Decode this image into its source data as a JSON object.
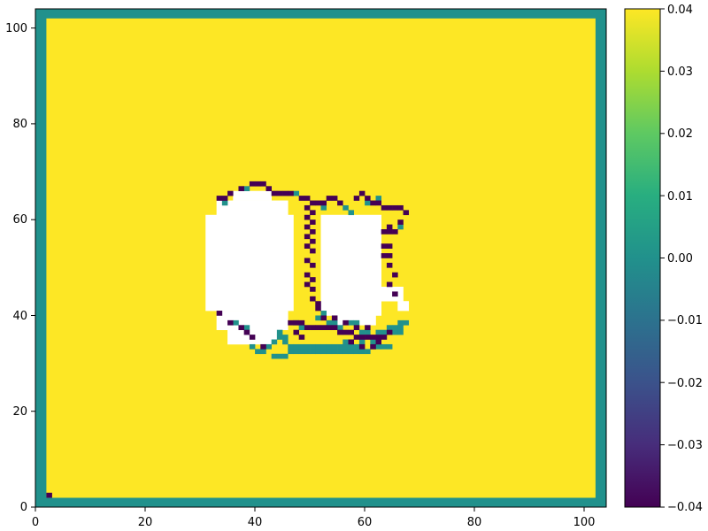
{
  "chart_data": {
    "type": "heatmap",
    "title": "",
    "xlabel": "",
    "ylabel": "",
    "xlim": [
      0,
      104
    ],
    "ylim": [
      0,
      104
    ],
    "x_ticks": [
      0,
      20,
      40,
      60,
      80,
      100
    ],
    "y_ticks": [
      0,
      20,
      40,
      60,
      80,
      100
    ],
    "x_tick_labels": [
      "0",
      "20",
      "40",
      "60",
      "80",
      "100"
    ],
    "y_tick_labels": [
      "0",
      "20",
      "40",
      "60",
      "80",
      "100"
    ],
    "colormap": "viridis",
    "color_range": [
      -0.04,
      0.04
    ],
    "colorbar_ticks": [
      0.04,
      0.03,
      0.02,
      0.01,
      0.0,
      -0.01,
      -0.02,
      -0.03,
      -0.04
    ],
    "colorbar_tick_labels": [
      "0.04",
      "0.03",
      "0.02",
      "0.01",
      "0.00",
      "−0.01",
      "−0.02",
      "−0.03",
      "−0.04"
    ],
    "colorbar_placement": "right",
    "grid": false,
    "background_value": 0.04,
    "border_value": 0.0,
    "border_width": 2,
    "missing_color": "#ffffff",
    "colors": {
      "high": "#fde725",
      "mid": "#21918c",
      "low": "#440154"
    },
    "missing_regions": [
      {
        "x": [
          31,
          47
        ],
        "y": [
          41,
          61
        ]
      },
      {
        "x": [
          33,
          46
        ],
        "y": [
          37,
          41
        ]
      },
      {
        "x": [
          35,
          44
        ],
        "y": [
          34,
          37
        ]
      },
      {
        "x": [
          33,
          46
        ],
        "y": [
          61,
          64
        ]
      },
      {
        "x": [
          36,
          43
        ],
        "y": [
          64,
          66
        ]
      },
      {
        "x": [
          52,
          63
        ],
        "y": [
          40,
          61
        ]
      },
      {
        "x": [
          55,
          62
        ],
        "y": [
          38,
          40
        ]
      },
      {
        "x": [
          63,
          67
        ],
        "y": [
          43,
          46
        ]
      },
      {
        "x": [
          66,
          68
        ],
        "y": [
          41,
          43
        ]
      }
    ],
    "low_cells": [
      [
        2,
        2
      ],
      [
        39,
        67
      ],
      [
        40,
        67
      ],
      [
        41,
        67
      ],
      [
        37,
        66
      ],
      [
        42,
        66
      ],
      [
        35,
        65
      ],
      [
        43,
        65
      ],
      [
        44,
        65
      ],
      [
        45,
        65
      ],
      [
        46,
        65
      ],
      [
        33,
        64
      ],
      [
        34,
        64
      ],
      [
        48,
        64
      ],
      [
        49,
        64
      ],
      [
        50,
        63
      ],
      [
        51,
        63
      ],
      [
        52,
        63
      ],
      [
        53,
        64
      ],
      [
        54,
        64
      ],
      [
        55,
        63
      ],
      [
        58,
        64
      ],
      [
        59,
        65
      ],
      [
        60,
        64
      ],
      [
        61,
        63
      ],
      [
        62,
        63
      ],
      [
        63,
        62
      ],
      [
        64,
        62
      ],
      [
        65,
        62
      ],
      [
        66,
        62
      ],
      [
        67,
        61
      ],
      [
        63,
        57
      ],
      [
        64,
        57
      ],
      [
        65,
        57
      ],
      [
        64,
        58
      ],
      [
        66,
        59
      ],
      [
        49,
        62
      ],
      [
        50,
        61
      ],
      [
        49,
        60
      ],
      [
        50,
        59
      ],
      [
        49,
        58
      ],
      [
        50,
        57
      ],
      [
        49,
        56
      ],
      [
        50,
        55
      ],
      [
        49,
        54
      ],
      [
        50,
        53
      ],
      [
        49,
        51
      ],
      [
        50,
        50
      ],
      [
        49,
        48
      ],
      [
        50,
        47
      ],
      [
        49,
        46
      ],
      [
        50,
        45
      ],
      [
        50,
        43
      ],
      [
        51,
        42
      ],
      [
        51,
        41
      ],
      [
        64,
        54
      ],
      [
        64,
        52
      ],
      [
        64,
        50
      ],
      [
        65,
        48
      ],
      [
        64,
        46
      ],
      [
        65,
        44
      ],
      [
        63,
        54
      ],
      [
        63,
        52
      ],
      [
        46,
        38
      ],
      [
        47,
        38
      ],
      [
        48,
        38
      ],
      [
        49,
        37
      ],
      [
        50,
        37
      ],
      [
        51,
        37
      ],
      [
        52,
        37
      ],
      [
        53,
        37
      ],
      [
        54,
        37
      ],
      [
        55,
        36
      ],
      [
        56,
        36
      ],
      [
        57,
        36
      ],
      [
        58,
        35
      ],
      [
        59,
        35
      ],
      [
        60,
        35
      ],
      [
        61,
        35
      ],
      [
        62,
        35
      ],
      [
        63,
        35
      ],
      [
        52,
        39
      ],
      [
        54,
        39
      ],
      [
        56,
        38
      ],
      [
        58,
        37
      ],
      [
        60,
        37
      ],
      [
        47,
        36
      ],
      [
        48,
        35
      ],
      [
        57,
        34
      ],
      [
        59,
        33
      ],
      [
        61,
        33
      ],
      [
        62,
        34
      ],
      [
        64,
        36
      ],
      [
        33,
        40
      ],
      [
        35,
        38
      ],
      [
        37,
        37
      ],
      [
        38,
        36
      ],
      [
        39,
        35
      ],
      [
        41,
        33
      ]
    ],
    "mid_cells": [
      [
        38,
        66
      ],
      [
        34,
        63
      ],
      [
        47,
        65
      ],
      [
        52,
        62
      ],
      [
        56,
        62
      ],
      [
        57,
        61
      ],
      [
        60,
        63
      ],
      [
        62,
        64
      ],
      [
        66,
        58
      ],
      [
        43,
        31
      ],
      [
        44,
        31
      ],
      [
        45,
        31
      ],
      [
        46,
        32
      ],
      [
        47,
        32
      ],
      [
        48,
        32
      ],
      [
        49,
        32
      ],
      [
        50,
        32
      ],
      [
        51,
        32
      ],
      [
        52,
        32
      ],
      [
        53,
        32
      ],
      [
        54,
        32
      ],
      [
        55,
        32
      ],
      [
        56,
        32
      ],
      [
        57,
        32
      ],
      [
        58,
        32
      ],
      [
        59,
        32
      ],
      [
        60,
        32
      ],
      [
        61,
        33
      ],
      [
        62,
        33
      ],
      [
        63,
        33
      ],
      [
        64,
        33
      ],
      [
        46,
        33
      ],
      [
        47,
        33
      ],
      [
        48,
        33
      ],
      [
        49,
        33
      ],
      [
        50,
        33
      ],
      [
        51,
        33
      ],
      [
        52,
        33
      ],
      [
        53,
        33
      ],
      [
        54,
        33
      ],
      [
        55,
        33
      ],
      [
        56,
        33
      ],
      [
        57,
        33
      ],
      [
        58,
        33
      ],
      [
        61,
        34
      ],
      [
        62,
        36
      ],
      [
        63,
        36
      ],
      [
        64,
        37
      ],
      [
        65,
        37
      ],
      [
        66,
        37
      ],
      [
        65,
        36
      ],
      [
        66,
        36
      ],
      [
        67,
        38
      ],
      [
        66,
        38
      ],
      [
        44,
        36
      ],
      [
        45,
        35
      ],
      [
        45,
        34
      ],
      [
        43,
        34
      ],
      [
        42,
        33
      ],
      [
        41,
        32
      ],
      [
        40,
        32
      ],
      [
        39,
        33
      ],
      [
        47,
        38
      ],
      [
        48,
        37
      ],
      [
        51,
        39
      ],
      [
        52,
        40
      ],
      [
        53,
        38
      ],
      [
        54,
        38
      ],
      [
        55,
        37
      ],
      [
        57,
        38
      ],
      [
        58,
        38
      ],
      [
        59,
        36
      ],
      [
        60,
        36
      ],
      [
        59,
        34
      ],
      [
        44,
        35
      ],
      [
        56,
        34
      ],
      [
        36,
        38
      ],
      [
        38,
        37
      ]
    ]
  }
}
